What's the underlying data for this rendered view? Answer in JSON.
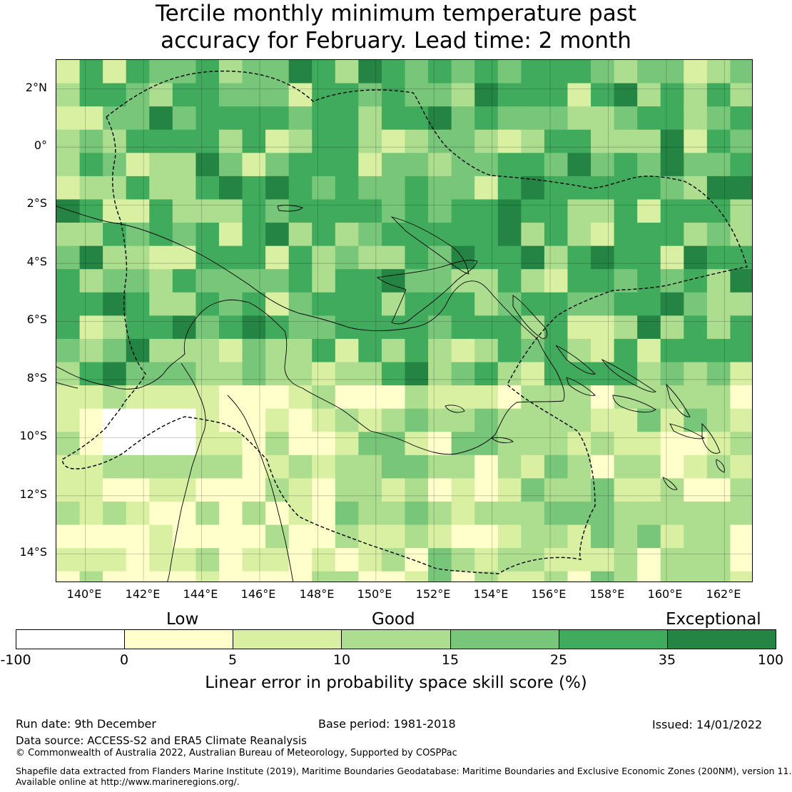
{
  "title": {
    "line1": "Tercile monthly minimum temperature past",
    "line2": "accuracy for February. Lead time: 2 month"
  },
  "map": {
    "lon_range": [
      139,
      163
    ],
    "lat_range": [
      -15,
      3
    ],
    "cell_size_deg": 0.8,
    "lat_ticks": [
      "2°N",
      "0°",
      "2°S",
      "4°S",
      "6°S",
      "8°S",
      "10°S",
      "12°S",
      "14°S"
    ],
    "lon_ticks": [
      "140°E",
      "142°E",
      "144°E",
      "146°E",
      "148°E",
      "150°E",
      "152°E",
      "154°E",
      "156°E",
      "158°E",
      "160°E",
      "162°E"
    ],
    "grid": true,
    "field_description_hint": "skill score field"
  },
  "legend": {
    "categories": [
      "Low",
      "Good",
      "Exceptional"
    ],
    "ticks": [
      "-100",
      "0",
      "5",
      "10",
      "15",
      "25",
      "35",
      "100"
    ],
    "colors": [
      "#ffffff",
      "#ffffcc",
      "#d9f0a3",
      "#addd8e",
      "#78c679",
      "#41ab5d",
      "#238443"
    ],
    "label": "Linear error in probability space skill score (%)"
  },
  "footer": {
    "run_date": "Run date: 9th December",
    "base_period": "Base period: 1981-2018",
    "issued": "Issued: 14/01/2022",
    "data_source": "Data source: ACCESS-S2 and ERA5 Climate Reanalysis",
    "copyright": "© Commonwealth of Australia 2022, Australian Bureau of Meteorology, Supported by COSPPac",
    "shapefile_line1": "Shapefile data extracted from Flanders Marine Institute (2019), Maritime Boundaries Geodatabase: Maritime Boundaries and Exclusive Economic Zones (200NM), version 11.",
    "shapefile_line2": "Available online at http://www.marineregions.org/."
  }
}
